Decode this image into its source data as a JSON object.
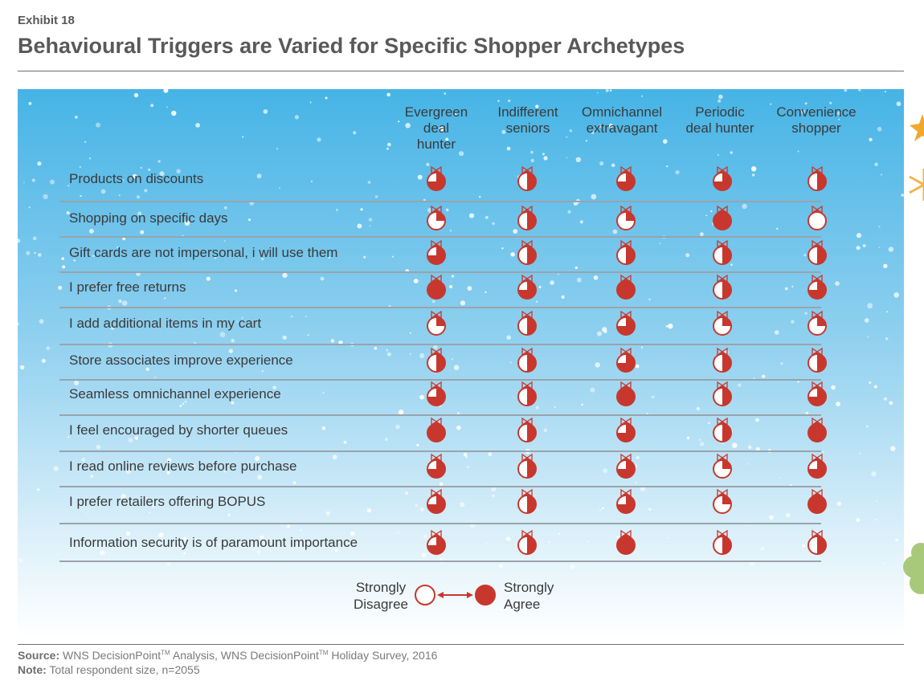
{
  "header": {
    "exhibit": "Exhibit 18",
    "title": "Behavioural Triggers are Varied for Specific Shopper Archetypes"
  },
  "colors": {
    "ball_red": "#c8372d",
    "ball_fill_empty": "#ffffff",
    "sky_top": "#46b4e6",
    "sky_bottom": "#ffffff",
    "bow": "#c8372d"
  },
  "chart_data": {
    "type": "table",
    "value_scale": "Harvey ball fill in quarters (0 = Strongly Disagree, 4 = Strongly Agree)",
    "columns": [
      "Evergreen deal hunter",
      "Indifferent seniors",
      "Omnichannel extravagant",
      "Periodic deal hunter",
      "Convenience shopper"
    ],
    "column_lines": [
      [
        "Evergreen",
        "deal",
        "hunter"
      ],
      [
        "Indifferent",
        "seniors"
      ],
      [
        "Omnichannel",
        "extravagant"
      ],
      [
        "Periodic",
        "deal hunter"
      ],
      [
        "Convenience",
        "shopper"
      ]
    ],
    "rows": [
      {
        "label": "Products on discounts",
        "values": [
          3,
          2,
          3,
          3,
          2
        ]
      },
      {
        "label": "Shopping on specific days",
        "values": [
          1,
          2,
          1,
          4,
          0
        ]
      },
      {
        "label": "Gift cards are not impersonal, i will use them",
        "values": [
          3,
          2,
          2,
          2,
          2
        ]
      },
      {
        "label": "I prefer free returns",
        "values": [
          4,
          3,
          4,
          2,
          3
        ]
      },
      {
        "label": "I add additional items in my cart",
        "values": [
          1,
          2,
          3,
          1,
          1
        ]
      },
      {
        "label": "Store associates improve experience",
        "values": [
          2,
          2,
          3,
          2,
          2
        ]
      },
      {
        "label": "Seamless omnichannel experience",
        "values": [
          3,
          2,
          4,
          2,
          3
        ]
      },
      {
        "label": "I feel encouraged by shorter queues",
        "values": [
          4,
          2,
          3,
          2,
          4
        ]
      },
      {
        "label": "I read online reviews before purchase",
        "values": [
          3,
          2,
          3,
          1,
          3
        ]
      },
      {
        "label": "I prefer retailers offering BOPUS",
        "values": [
          3,
          2,
          3,
          1,
          4
        ]
      },
      {
        "label": "Information security is of paramount importance",
        "values": [
          3,
          2,
          4,
          2,
          2
        ]
      }
    ],
    "legend": {
      "low_label_line1": "Strongly",
      "low_label_line2": "Disagree",
      "high_label_line1": "Strongly",
      "high_label_line2": "Agree"
    }
  },
  "footer": {
    "source_label": "Source:",
    "source_text_1": " WNS DecisionPoint",
    "source_tm_1": "TM",
    "source_text_2": " Analysis, WNS DecisionPoint",
    "source_tm_2": "TM",
    "source_text_3": " Holiday Survey, 2016",
    "note_label": "Note:",
    "note_text": " Total respondent size, n=2055"
  }
}
